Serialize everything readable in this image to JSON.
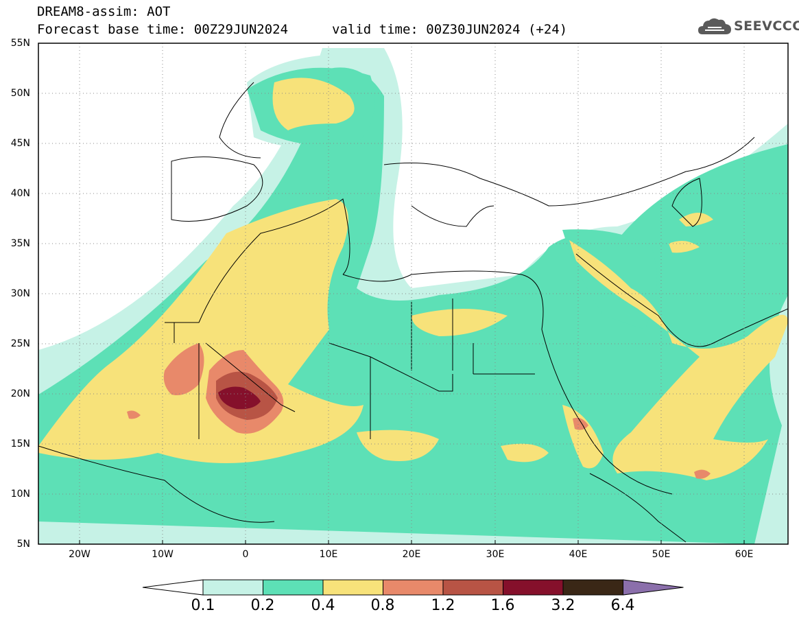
{
  "header": {
    "title": "DREAM8-assim: AOT",
    "base_time": "Forecast base time: 00Z29JUN2024",
    "valid_time": "valid time: 00Z30JUN2024 (+24)"
  },
  "logo": {
    "text": "SEEVCCC",
    "icon": "cloud-icon",
    "color": "#5a5a5a"
  },
  "map": {
    "projection": "lat-lon",
    "lon_range": [
      -25,
      65
    ],
    "lat_range": [
      5,
      55
    ],
    "lat_labels": [
      "55N",
      "50N",
      "45N",
      "40N",
      "35N",
      "30N",
      "25N",
      "20N",
      "15N",
      "10N",
      "5N"
    ],
    "lat_values": [
      55,
      50,
      45,
      40,
      35,
      30,
      25,
      20,
      15,
      10,
      5
    ],
    "lon_labels": [
      "20W",
      "10W",
      "0",
      "10E",
      "20E",
      "30E",
      "40E",
      "50E",
      "60E"
    ],
    "lon_values": [
      -20,
      -10,
      0,
      10,
      20,
      30,
      40,
      50,
      60
    ],
    "grid": "dotted"
  },
  "colorbar": {
    "levels": [
      "0.1",
      "0.2",
      "0.4",
      "0.8",
      "1.2",
      "1.6",
      "3.2",
      "6.4"
    ],
    "colors": [
      "#c6f2e6",
      "#5de0b6",
      "#f7e27a",
      "#e8896a",
      "#b85445",
      "#85102b",
      "#3a2716",
      "#8b6fab"
    ],
    "under_color": "#ffffff"
  }
}
